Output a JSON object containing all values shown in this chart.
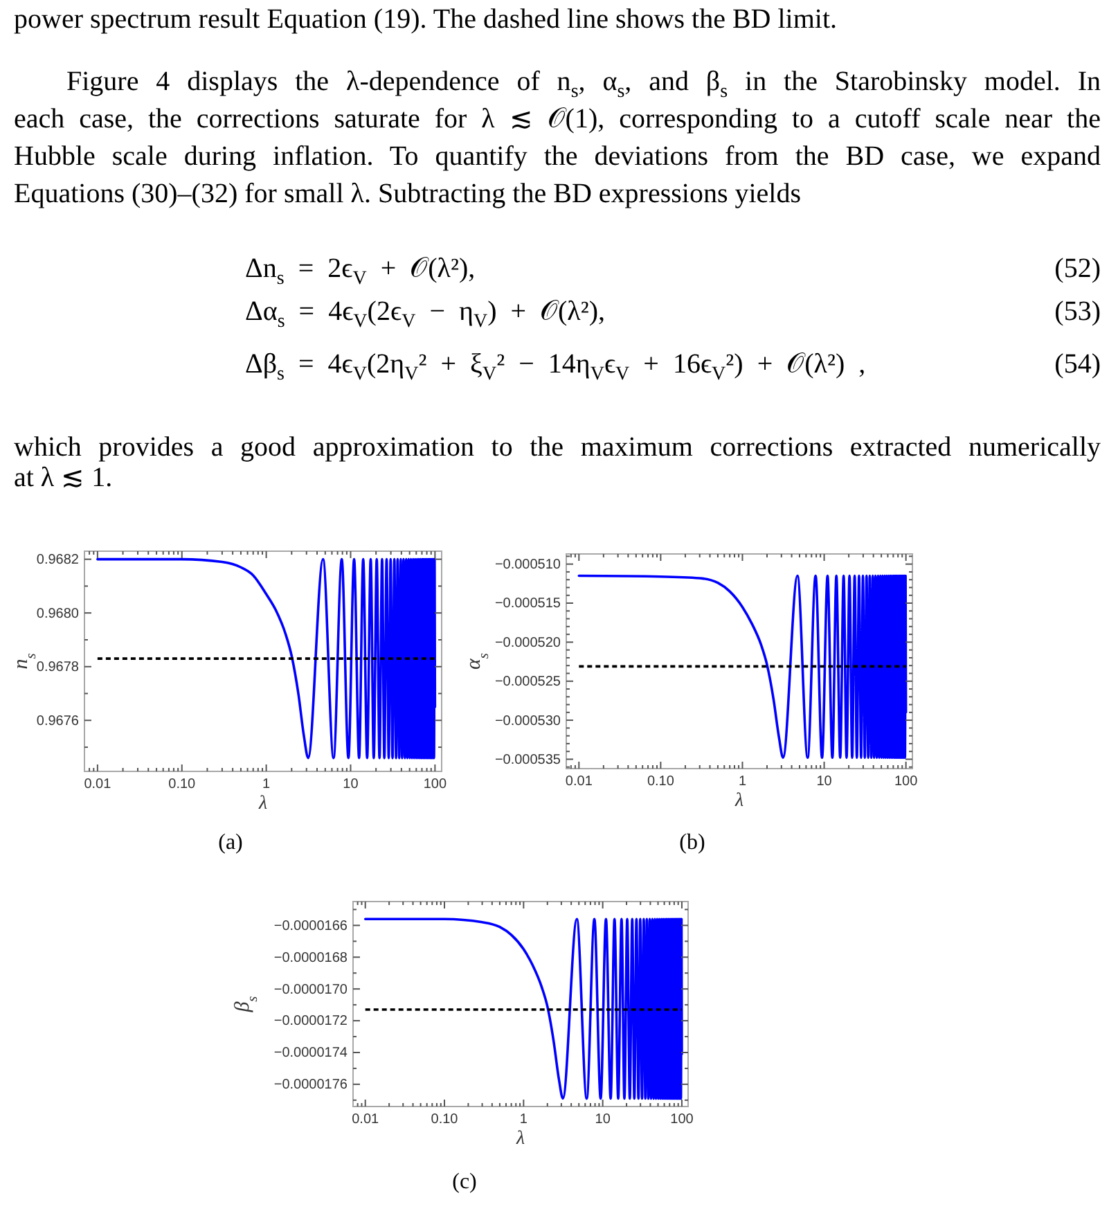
{
  "chart_data": [
    {
      "type": "other",
      "annotations": [
        "power spectrum result Equation (19). The dashed line shows the BD limit.",
        "Figure 4 displays the λ-dependence of n$_{s}$, α$_{s}$, and β$_{s}$ in the Starobinsky model. In",
        "each case, the corrections saturate for λ ≲ 𝒪(1), corresponding to a cutoff scale near the",
        "Hubble scale during inflation. To quantify the deviations from the BD case, we expand",
        "Equations (30)–(32) for small λ. Subtracting the BD expressions yields",
        "Δn$_{s}$ = 2ϵ$_{V}$ + 𝒪(λ²),",
        "(52)",
        "Δα$_{s}$ = 4ϵ$_{V}$(2ϵ$_{V}$ − η$_{V}$) + 𝒪(λ²),",
        "(53)",
        "Δβ$_{s}$ = 4ϵ$_{V}$(2η$_{V}$² + ξ$_{V}$² − 14η$_{V}$ϵ$_{V}$ + 16ϵ$_{V}$²) + 𝒪(λ²) ,",
        "(54)",
        "which provides a good approximation to the maximum corrections extracted numerically",
        "at λ ≲ 1."
      ]
    },
    {
      "type": "line",
      "title": "(a)",
      "xlabel": "λ",
      "ylabel": "n$_{s}$",
      "log": "x",
      "x": [
        0.01,
        0.1,
        0.3,
        0.5,
        0.7,
        1,
        1.3,
        1.7,
        2,
        2.4,
        2.8,
        3.14,
        4.71,
        6.28,
        7.85,
        9.42,
        11,
        12.6,
        14.1,
        15.7,
        17.3,
        18.8,
        20.4,
        22,
        23.6,
        25.1,
        26.7,
        28.3,
        29.8,
        31.4,
        33,
        34.6,
        36.1,
        37.7,
        39.3,
        40.8,
        42.4,
        44,
        45.6,
        47.1,
        48.7,
        50.3,
        51.8,
        53.4,
        55,
        56.5,
        58.1,
        59.7,
        61.3,
        62.8,
        64.4,
        66,
        67.5,
        69.1,
        70.7,
        72.3,
        73.8,
        75.4,
        77,
        78.5,
        80.1,
        81.7,
        83.3,
        84.8,
        86.4,
        88,
        89.5,
        91.1,
        92.7,
        94.2,
        95.8,
        97.4,
        99,
        100
      ],
      "values": [
        0.9682,
        0.9682,
        0.96819,
        0.96817,
        0.96814,
        0.96807,
        0.96801,
        0.96792,
        0.96784,
        0.9677,
        0.96754,
        0.96746,
        0.9682,
        0.96746,
        0.9682,
        0.96746,
        0.9682,
        0.96746,
        0.9682,
        0.96746,
        0.9682,
        0.96746,
        0.9682,
        0.96746,
        0.9682,
        0.96746,
        0.9682,
        0.96746,
        0.9682,
        0.96746,
        0.9682,
        0.96746,
        0.9682,
        0.96746,
        0.9682,
        0.96746,
        0.9682,
        0.96746,
        0.9682,
        0.96746,
        0.9682,
        0.96746,
        0.9682,
        0.96746,
        0.9682,
        0.96746,
        0.9682,
        0.96746,
        0.9682,
        0.96746,
        0.9682,
        0.96746,
        0.9682,
        0.96746,
        0.9682,
        0.96746,
        0.9682,
        0.96746,
        0.9682,
        0.96746,
        0.9682,
        0.96746,
        0.9682,
        0.96746,
        0.9682,
        0.96746,
        0.9682,
        0.96746,
        0.9682,
        0.96746,
        0.9682,
        0.96746,
        0.9682,
        0.96765
      ],
      "color": "#0000ff",
      "xlim": [
        0.007,
        120
      ],
      "xticks": [
        {
          "value": 0.008,
          "label": null
        },
        {
          "value": 0.009,
          "label": null
        },
        0.01,
        {
          "value": 0.02,
          "label": null
        },
        {
          "value": 0.03,
          "label": null
        },
        {
          "value": 0.04,
          "label": null
        },
        {
          "value": 0.05,
          "label": null
        },
        {
          "value": 0.06,
          "label": null
        },
        {
          "value": 0.07,
          "label": null
        },
        {
          "value": 0.08,
          "label": null
        },
        {
          "value": 0.09,
          "label": null
        },
        {
          "value": 0.1,
          "label": "0.10"
        },
        {
          "value": 0.2,
          "label": null
        },
        {
          "value": 0.3,
          "label": null
        },
        {
          "value": 0.4,
          "label": null
        },
        {
          "value": 0.5,
          "label": null
        },
        {
          "value": 0.6,
          "label": null
        },
        {
          "value": 0.7,
          "label": null
        },
        {
          "value": 0.8,
          "label": null
        },
        {
          "value": 0.9,
          "label": null
        },
        1,
        {
          "value": 2,
          "label": null
        },
        {
          "value": 3,
          "label": null
        },
        {
          "value": 4,
          "label": null
        },
        {
          "value": 5,
          "label": null
        },
        {
          "value": 6,
          "label": null
        },
        {
          "value": 7,
          "label": null
        },
        {
          "value": 8,
          "label": null
        },
        {
          "value": 9,
          "label": null
        },
        10,
        {
          "value": 20,
          "label": null
        },
        {
          "value": 30,
          "label": null
        },
        {
          "value": 40,
          "label": null
        },
        {
          "value": 50,
          "label": null
        },
        {
          "value": 60,
          "label": null
        },
        {
          "value": 70,
          "label": null
        },
        {
          "value": 80,
          "label": null
        },
        {
          "value": 90,
          "label": null
        },
        100
      ],
      "ylim": [
        0.96741,
        0.96823
      ],
      "yticks": [
        {
          "value": 0.9675,
          "label": null
        },
        {
          "value": 0.9676,
          "label": "0.9676"
        },
        {
          "value": 0.9677,
          "label": null
        },
        {
          "value": 0.9678,
          "label": "0.9678"
        },
        {
          "value": 0.9679,
          "label": null
        },
        {
          "value": 0.968,
          "label": "0.9680"
        },
        {
          "value": 0.9681,
          "label": null
        },
        {
          "value": 0.9682,
          "label": "0.9682"
        }
      ],
      "ref_lines": [
        {
          "axis": "y",
          "value": 0.96783,
          "color": "#000000",
          "line_style": "dashed"
        }
      ]
    },
    {
      "type": "line",
      "title": "(b)",
      "xlabel": "λ",
      "ylabel": "α$_{s}$",
      "log": "x",
      "x": [
        0.01,
        0.1,
        0.3,
        0.5,
        0.7,
        1,
        1.3,
        1.7,
        2,
        2.4,
        2.8,
        3.14,
        4.71,
        6.28,
        7.85,
        9.42,
        11,
        12.6,
        14.1,
        15.7,
        17.3,
        18.8,
        20.4,
        22,
        23.6,
        25.1,
        26.7,
        28.3,
        29.8,
        31.4,
        33,
        34.6,
        36.1,
        37.7,
        39.3,
        40.8,
        42.4,
        44,
        45.6,
        47.1,
        48.7,
        50.3,
        51.8,
        53.4,
        55,
        56.5,
        58.1,
        59.7,
        61.3,
        62.8,
        64.4,
        66,
        67.5,
        69.1,
        70.7,
        72.3,
        73.8,
        75.4,
        77,
        78.5,
        80.1,
        81.7,
        83.3,
        84.8,
        86.4,
        88,
        89.5,
        91.1,
        92.7,
        94.2,
        95.8,
        97.4,
        99,
        100
      ],
      "values": [
        -0.0005115,
        -0.0005116,
        -0.0005118,
        -0.0005124,
        -0.0005135,
        -0.0005155,
        -0.0005176,
        -0.0005204,
        -0.0005229,
        -0.0005273,
        -0.0005322,
        -0.0005348,
        -0.0005115,
        -0.0005348,
        -0.0005115,
        -0.0005348,
        -0.0005115,
        -0.0005348,
        -0.0005115,
        -0.0005348,
        -0.0005115,
        -0.0005348,
        -0.0005115,
        -0.0005348,
        -0.0005115,
        -0.0005348,
        -0.0005115,
        -0.0005348,
        -0.0005115,
        -0.0005348,
        -0.0005115,
        -0.0005348,
        -0.0005115,
        -0.0005348,
        -0.0005115,
        -0.0005348,
        -0.0005115,
        -0.0005348,
        -0.0005115,
        -0.0005348,
        -0.0005115,
        -0.0005348,
        -0.0005115,
        -0.0005348,
        -0.0005115,
        -0.0005348,
        -0.0005115,
        -0.0005348,
        -0.0005115,
        -0.0005348,
        -0.0005115,
        -0.0005348,
        -0.0005115,
        -0.0005348,
        -0.0005115,
        -0.0005348,
        -0.0005115,
        -0.0005348,
        -0.0005115,
        -0.0005348,
        -0.0005115,
        -0.0005348,
        -0.0005115,
        -0.0005348,
        -0.0005115,
        -0.0005348,
        -0.0005115,
        -0.0005348,
        -0.0005115,
        -0.0005348,
        -0.0005115,
        -0.0005348,
        -0.0005115,
        -0.000529
      ],
      "color": "#0000ff",
      "xlim": [
        0.007,
        120
      ],
      "xticks": [
        {
          "value": 0.008,
          "label": null
        },
        {
          "value": 0.009,
          "label": null
        },
        0.01,
        {
          "value": 0.02,
          "label": null
        },
        {
          "value": 0.03,
          "label": null
        },
        {
          "value": 0.04,
          "label": null
        },
        {
          "value": 0.05,
          "label": null
        },
        {
          "value": 0.06,
          "label": null
        },
        {
          "value": 0.07,
          "label": null
        },
        {
          "value": 0.08,
          "label": null
        },
        {
          "value": 0.09,
          "label": null
        },
        {
          "value": 0.1,
          "label": "0.10"
        },
        {
          "value": 0.2,
          "label": null
        },
        {
          "value": 0.3,
          "label": null
        },
        {
          "value": 0.4,
          "label": null
        },
        {
          "value": 0.5,
          "label": null
        },
        {
          "value": 0.6,
          "label": null
        },
        {
          "value": 0.7,
          "label": null
        },
        {
          "value": 0.8,
          "label": null
        },
        {
          "value": 0.9,
          "label": null
        },
        1,
        {
          "value": 2,
          "label": null
        },
        {
          "value": 3,
          "label": null
        },
        {
          "value": 4,
          "label": null
        },
        {
          "value": 5,
          "label": null
        },
        {
          "value": 6,
          "label": null
        },
        {
          "value": 7,
          "label": null
        },
        {
          "value": 8,
          "label": null
        },
        {
          "value": 9,
          "label": null
        },
        10,
        {
          "value": 20,
          "label": null
        },
        {
          "value": 30,
          "label": null
        },
        {
          "value": 40,
          "label": null
        },
        {
          "value": 50,
          "label": null
        },
        {
          "value": 60,
          "label": null
        },
        {
          "value": 70,
          "label": null
        },
        {
          "value": 80,
          "label": null
        },
        {
          "value": 90,
          "label": null
        },
        100
      ],
      "ylim": [
        -0.0005362,
        -0.0005087
      ],
      "yticks": [
        {
          "value": -0.000536,
          "label": null
        },
        {
          "value": -0.000535,
          "label": "−0.000535"
        },
        {
          "value": -0.000534,
          "label": null
        },
        {
          "value": -0.000533,
          "label": null
        },
        {
          "value": -0.000532,
          "label": null
        },
        {
          "value": -0.000531,
          "label": null
        },
        {
          "value": -0.00053,
          "label": "−0.000530"
        },
        {
          "value": -0.000529,
          "label": null
        },
        {
          "value": -0.000528,
          "label": null
        },
        {
          "value": -0.000527,
          "label": null
        },
        {
          "value": -0.000526,
          "label": null
        },
        {
          "value": -0.000525,
          "label": "−0.000525"
        },
        {
          "value": -0.000524,
          "label": null
        },
        {
          "value": -0.000523,
          "label": null
        },
        {
          "value": -0.000522,
          "label": null
        },
        {
          "value": -0.000521,
          "label": null
        },
        {
          "value": -0.00052,
          "label": "−0.000520"
        },
        {
          "value": -0.000519,
          "label": null
        },
        {
          "value": -0.000518,
          "label": null
        },
        {
          "value": -0.000517,
          "label": null
        },
        {
          "value": -0.000516,
          "label": null
        },
        {
          "value": -0.000515,
          "label": "−0.000515"
        },
        {
          "value": -0.000514,
          "label": null
        },
        {
          "value": -0.000513,
          "label": null
        },
        {
          "value": -0.000512,
          "label": null
        },
        {
          "value": -0.000511,
          "label": null
        },
        {
          "value": -0.00051,
          "label": "−0.000510"
        },
        {
          "value": -0.000509,
          "label": null
        }
      ],
      "ref_lines": [
        {
          "axis": "y",
          "value": -0.0005231,
          "color": "#000000",
          "line_style": "dashed"
        }
      ]
    },
    {
      "type": "line",
      "title": "(c)",
      "xlabel": "λ",
      "ylabel": "β$_{s}$",
      "log": "x",
      "x": [
        0.01,
        0.1,
        0.3,
        0.5,
        0.7,
        1,
        1.3,
        1.7,
        2,
        2.4,
        2.8,
        3.14,
        4.71,
        6.28,
        7.85,
        9.42,
        11,
        12.6,
        14.1,
        15.7,
        17.3,
        18.8,
        20.4,
        22,
        23.6,
        25.1,
        26.7,
        28.3,
        29.8,
        31.4,
        33,
        34.6,
        36.1,
        37.7,
        39.3,
        40.8,
        42.4,
        44,
        45.6,
        47.1,
        48.7,
        50.3,
        51.8,
        53.4,
        55,
        56.5,
        58.1,
        59.7,
        61.3,
        62.8,
        64.4,
        66,
        67.5,
        69.1,
        70.7,
        72.3,
        73.8,
        75.4,
        77,
        78.5,
        80.1,
        81.7,
        83.3,
        84.8,
        86.4,
        88,
        89.5,
        91.1,
        92.7,
        94.2,
        95.8,
        97.4,
        99,
        100
      ],
      "values": [
        -1.656e-05,
        -1.656e-05,
        -1.658e-05,
        -1.661e-05,
        -1.666e-05,
        -1.675e-05,
        -1.685e-05,
        -1.699e-05,
        -1.711e-05,
        -1.733e-05,
        -1.757e-05,
        -1.769e-05,
        -1.656e-05,
        -1.769e-05,
        -1.656e-05,
        -1.769e-05,
        -1.656e-05,
        -1.769e-05,
        -1.656e-05,
        -1.769e-05,
        -1.656e-05,
        -1.769e-05,
        -1.656e-05,
        -1.769e-05,
        -1.656e-05,
        -1.769e-05,
        -1.656e-05,
        -1.769e-05,
        -1.656e-05,
        -1.769e-05,
        -1.656e-05,
        -1.769e-05,
        -1.656e-05,
        -1.769e-05,
        -1.656e-05,
        -1.769e-05,
        -1.656e-05,
        -1.769e-05,
        -1.656e-05,
        -1.769e-05,
        -1.656e-05,
        -1.769e-05,
        -1.656e-05,
        -1.769e-05,
        -1.656e-05,
        -1.769e-05,
        -1.656e-05,
        -1.769e-05,
        -1.656e-05,
        -1.769e-05,
        -1.656e-05,
        -1.769e-05,
        -1.656e-05,
        -1.769e-05,
        -1.656e-05,
        -1.769e-05,
        -1.656e-05,
        -1.769e-05,
        -1.656e-05,
        -1.769e-05,
        -1.656e-05,
        -1.769e-05,
        -1.656e-05,
        -1.769e-05,
        -1.656e-05,
        -1.769e-05,
        -1.656e-05,
        -1.769e-05,
        -1.656e-05,
        -1.769e-05,
        -1.656e-05,
        -1.769e-05,
        -1.656e-05,
        -1.741e-05
      ],
      "color": "#0000ff",
      "xlim": [
        0.007,
        120
      ],
      "xticks": [
        {
          "value": 0.008,
          "label": null
        },
        {
          "value": 0.009,
          "label": null
        },
        0.01,
        {
          "value": 0.02,
          "label": null
        },
        {
          "value": 0.03,
          "label": null
        },
        {
          "value": 0.04,
          "label": null
        },
        {
          "value": 0.05,
          "label": null
        },
        {
          "value": 0.06,
          "label": null
        },
        {
          "value": 0.07,
          "label": null
        },
        {
          "value": 0.08,
          "label": null
        },
        {
          "value": 0.09,
          "label": null
        },
        {
          "value": 0.1,
          "label": "0.10"
        },
        {
          "value": 0.2,
          "label": null
        },
        {
          "value": 0.3,
          "label": null
        },
        {
          "value": 0.4,
          "label": null
        },
        {
          "value": 0.5,
          "label": null
        },
        {
          "value": 0.6,
          "label": null
        },
        {
          "value": 0.7,
          "label": null
        },
        {
          "value": 0.8,
          "label": null
        },
        {
          "value": 0.9,
          "label": null
        },
        1,
        {
          "value": 2,
          "label": null
        },
        {
          "value": 3,
          "label": null
        },
        {
          "value": 4,
          "label": null
        },
        {
          "value": 5,
          "label": null
        },
        {
          "value": 6,
          "label": null
        },
        {
          "value": 7,
          "label": null
        },
        {
          "value": 8,
          "label": null
        },
        {
          "value": 9,
          "label": null
        },
        10,
        {
          "value": 20,
          "label": null
        },
        {
          "value": 30,
          "label": null
        },
        {
          "value": 40,
          "label": null
        },
        {
          "value": 50,
          "label": null
        },
        {
          "value": 60,
          "label": null
        },
        {
          "value": 70,
          "label": null
        },
        {
          "value": 80,
          "label": null
        },
        {
          "value": 90,
          "label": null
        },
        100
      ],
      "ylim": [
        -1.774e-05,
        -1.645e-05
      ],
      "yticks": [
        {
          "value": -1.77e-05,
          "label": null
        },
        {
          "value": -1.76e-05,
          "label": "−0.0000176"
        },
        {
          "value": -1.75e-05,
          "label": null
        },
        {
          "value": -1.74e-05,
          "label": "−0.0000174"
        },
        {
          "value": -1.73e-05,
          "label": null
        },
        {
          "value": -1.72e-05,
          "label": "−0.0000172"
        },
        {
          "value": -1.71e-05,
          "label": null
        },
        {
          "value": -1.7e-05,
          "label": "−0.0000170"
        },
        {
          "value": -1.69e-05,
          "label": null
        },
        {
          "value": -1.68e-05,
          "label": "−0.0000168"
        },
        {
          "value": -1.67e-05,
          "label": null
        },
        {
          "value": -1.66e-05,
          "label": "−0.0000166"
        },
        {
          "value": -1.65e-05,
          "label": null
        }
      ],
      "ref_lines": [
        {
          "axis": "y",
          "value": -1.713e-05,
          "color": "#000000",
          "line_style": "dashed"
        }
      ]
    }
  ]
}
